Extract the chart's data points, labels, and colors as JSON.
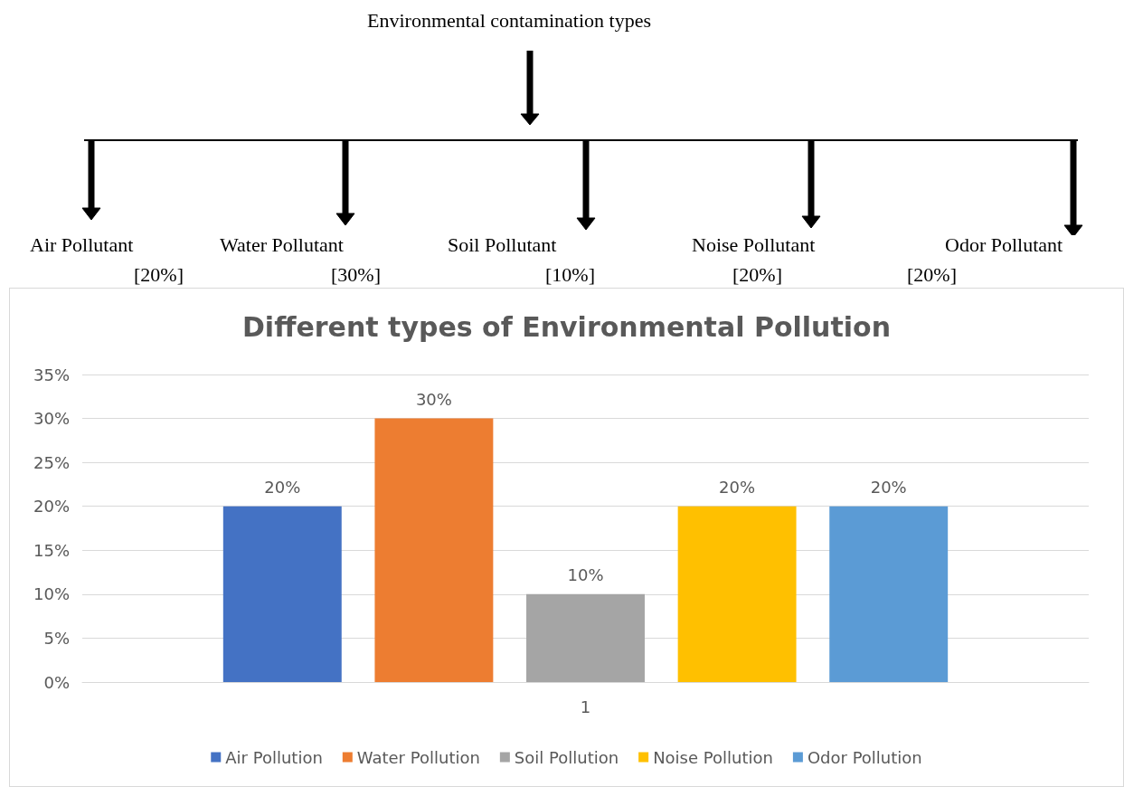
{
  "chart_data": {
    "type": "bar",
    "title": "Different types of Environmental Pollution",
    "categories": [
      "1"
    ],
    "series": [
      {
        "name": "Air Pollution",
        "color": "#4472c4",
        "values": [
          20
        ],
        "value_labels": [
          "20%"
        ]
      },
      {
        "name": "Water Pollution",
        "color": "#ed7d31",
        "values": [
          30
        ],
        "value_labels": [
          "30%"
        ]
      },
      {
        "name": "Soil Pollution",
        "color": "#a5a5a5",
        "values": [
          10
        ],
        "value_labels": [
          "10%"
        ]
      },
      {
        "name": "Noise Pollution",
        "color": "#ffc000",
        "values": [
          20
        ],
        "value_labels": [
          "20%"
        ]
      },
      {
        "name": "Odor Pollution",
        "color": "#5b9bd5",
        "values": [
          20
        ],
        "value_labels": [
          "20%"
        ]
      }
    ],
    "ylim": [
      0,
      35
    ],
    "yticks": [
      {
        "value": 0,
        "label": "0%"
      },
      {
        "value": 5,
        "label": "5%"
      },
      {
        "value": 10,
        "label": "10%"
      },
      {
        "value": 15,
        "label": "15%"
      },
      {
        "value": 20,
        "label": "20%"
      },
      {
        "value": 25,
        "label": "25%"
      },
      {
        "value": 30,
        "label": "30%"
      },
      {
        "value": 35,
        "label": "35%"
      }
    ],
    "grid": "y",
    "legend": "bottom",
    "annotations": [
      "Environmental contamination types",
      "Air Pollutant",
      "[20%]",
      "Water Pollutant",
      "[30%]",
      "Soil Pollutant",
      "[10%]",
      "Noise Pollutant",
      "[20%]",
      "Odor Pollutant",
      "[20%]"
    ]
  }
}
